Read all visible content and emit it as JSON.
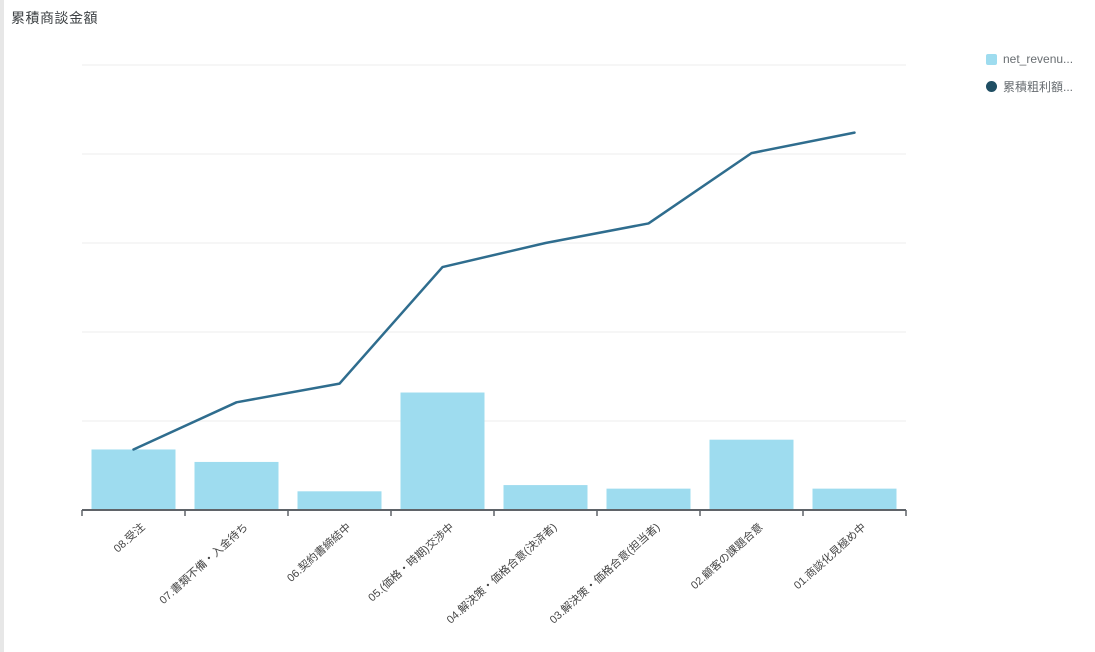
{
  "page": {
    "title": "累積商談金額"
  },
  "legend": {
    "position": "top-right",
    "items": [
      {
        "label": "net_revenu...",
        "marker": "square",
        "color": "#9edcef"
      },
      {
        "label": "累積粗利額...",
        "marker": "circle",
        "color": "#1f4e63"
      }
    ]
  },
  "chart_data": {
    "type": "bar",
    "subtype": "bar-and-line-combo",
    "title": "累積商談金額",
    "xlabel": "",
    "ylabel": "",
    "categories": [
      "08.受注",
      "07.書類不備・入金待ち",
      "06.契約書締結中",
      "05.(価格・時期)交渉中",
      "04.解決策・価格合意(決済者)",
      "03.解決策・価格合意(担当者)",
      "02.顧客の課題合意",
      "01.商談化見極め中"
    ],
    "series": [
      {
        "name": "net_revenu...",
        "type": "bar",
        "color": "#9edcef",
        "values": [
          0.68,
          0.54,
          0.21,
          1.32,
          0.28,
          0.24,
          0.79,
          0.24
        ]
      },
      {
        "name": "累積粗利額...",
        "type": "line",
        "color": "#2f6d8e",
        "values": [
          0.68,
          1.21,
          1.42,
          2.73,
          3.0,
          3.22,
          4.01,
          4.24
        ]
      }
    ],
    "y_axis": {
      "labels_visible": false,
      "gridline_count": 5,
      "units_per_gridline": 1,
      "ylim": [
        0,
        5
      ],
      "note": "no numeric tick labels shown; values estimated in gridline units"
    },
    "x_label_rotation_deg": -42,
    "grid": "horizontal-only",
    "legend_position": "top-right",
    "colors": {
      "bar": "#9edcef",
      "line": "#2f6d8e",
      "gridline": "#ececec",
      "axis": "#5f6368",
      "label": "#454545"
    }
  }
}
